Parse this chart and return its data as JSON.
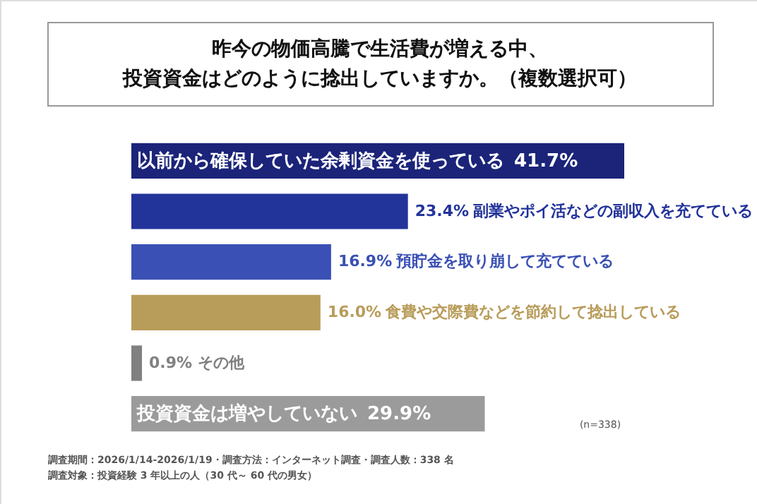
{
  "chart_data": {
    "type": "bar",
    "orientation": "horizontal",
    "title": "昨今の物価高騰で生活費が増える中、投資資金はどのように捻出していますか。（複数選択可）",
    "categories": [
      "以前から確保していた余剰資金を使っている",
      "副業やポイ活などの副収入を充てている",
      "預貯金を取り崩して充てている",
      "食費や交際費などを節約して捻出している",
      "その他",
      "投資資金は増やしていない"
    ],
    "values": [
      41.7,
      23.4,
      16.9,
      16.0,
      0.9,
      29.9
    ],
    "value_labels": [
      "41.7%",
      "23.4%",
      "16.9%",
      "16.0%",
      "0.9%",
      "29.9%"
    ],
    "colors": [
      "#1b2479",
      "#22339a",
      "#3a50b4",
      "#b89c5a",
      "#808080",
      "#9b9b9b"
    ],
    "annotations": [
      "(n=338)",
      "調査期間：2026/1/14-2026/1/19・調査方法：インターネット調査・調査人数：338 名",
      "調査対象：投資経験 3 年以上の人（30 代～ 60 代の男女）"
    ]
  }
}
